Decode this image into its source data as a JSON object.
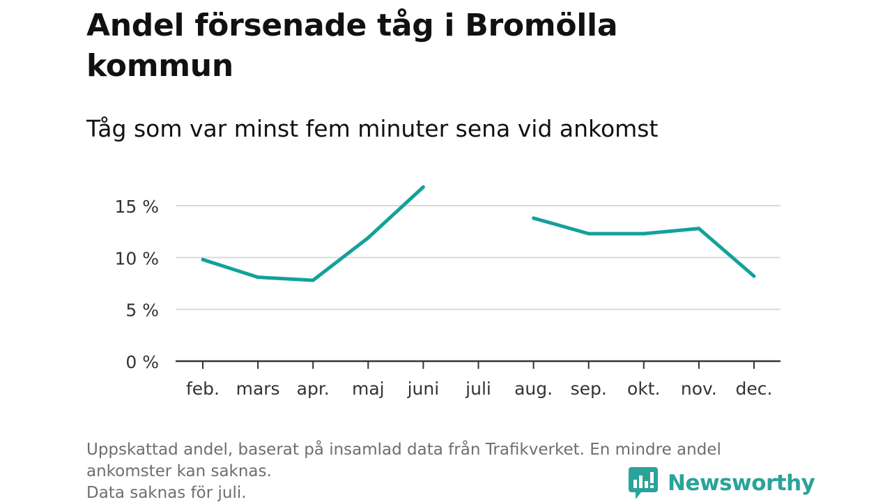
{
  "title": "Andel försenade tåg i Bromölla kommun",
  "subtitle": "Tåg som var minst fem minuter sena vid ankomst",
  "footnote": {
    "line1": "Uppskattad andel, baserat på insamlad data från Trafikverket. En mindre andel",
    "line2": "ankomster kan saknas.",
    "line3": "Data saknas för juli."
  },
  "brand": {
    "name": "Newsworthy",
    "icon": "newsworthy-logo-icon",
    "color": "#2aa39a"
  },
  "chart_data": {
    "type": "line",
    "categories": [
      "feb.",
      "mars",
      "apr.",
      "maj",
      "juni",
      "juli",
      "aug.",
      "sep.",
      "okt.",
      "nov.",
      "dec."
    ],
    "series": [
      {
        "values": [
          9.8,
          8.1,
          7.8,
          11.9,
          16.8,
          null,
          13.8,
          12.3,
          12.3,
          12.8,
          8.2
        ],
        "color": "#13a19a"
      }
    ],
    "yticks": [
      0,
      5,
      10,
      15
    ],
    "ytick_labels": [
      "0 %",
      "5 %",
      "10 %",
      "15 %"
    ],
    "ylim": [
      0,
      17.4
    ],
    "grid": true,
    "xlabel": "",
    "ylabel": ""
  }
}
